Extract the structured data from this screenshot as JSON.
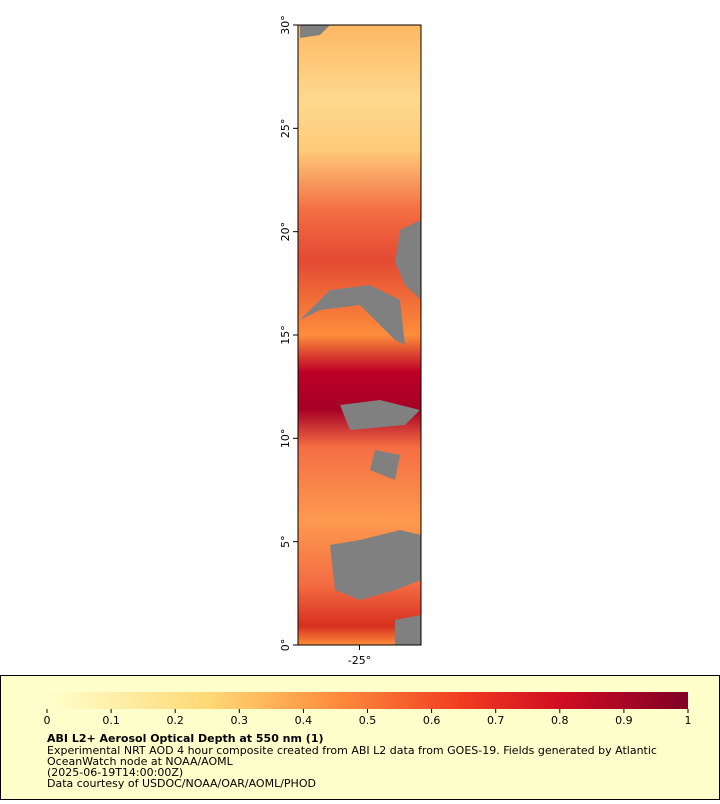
{
  "map": {
    "latlim": [
      0,
      30
    ],
    "lonlim": [
      -28,
      -22
    ],
    "yticks": [
      {
        "value": 0,
        "label": "0°"
      },
      {
        "value": 5,
        "label": "5°"
      },
      {
        "value": 10,
        "label": "10°"
      },
      {
        "value": 15,
        "label": "15°"
      },
      {
        "value": 20,
        "label": "20°"
      },
      {
        "value": 25,
        "label": "25°"
      },
      {
        "value": 30,
        "label": "30°"
      }
    ],
    "xticks": [
      {
        "value": -25,
        "label": "-25°"
      }
    ]
  },
  "colorbar": {
    "lim": [
      0,
      1
    ],
    "ticks": [
      0,
      0.1,
      0.2,
      0.3,
      0.4,
      0.5,
      0.6,
      0.7,
      0.8,
      0.9,
      1
    ]
  },
  "legend": {
    "title": "ABI L2+ Aerosol Optical Depth at 550 nm (1)",
    "lines": [
      "Experimental NRT AOD 4 hour composite created from ABI L2 data from GOES-19. Fields generated by Atlantic",
      "OceanWatch node at NOAA/AOML",
      "(2025-06-19T14:00:00Z)",
      "Data courtesy of USDOC/NOAA/OAR/AOML/PHOD"
    ]
  }
}
